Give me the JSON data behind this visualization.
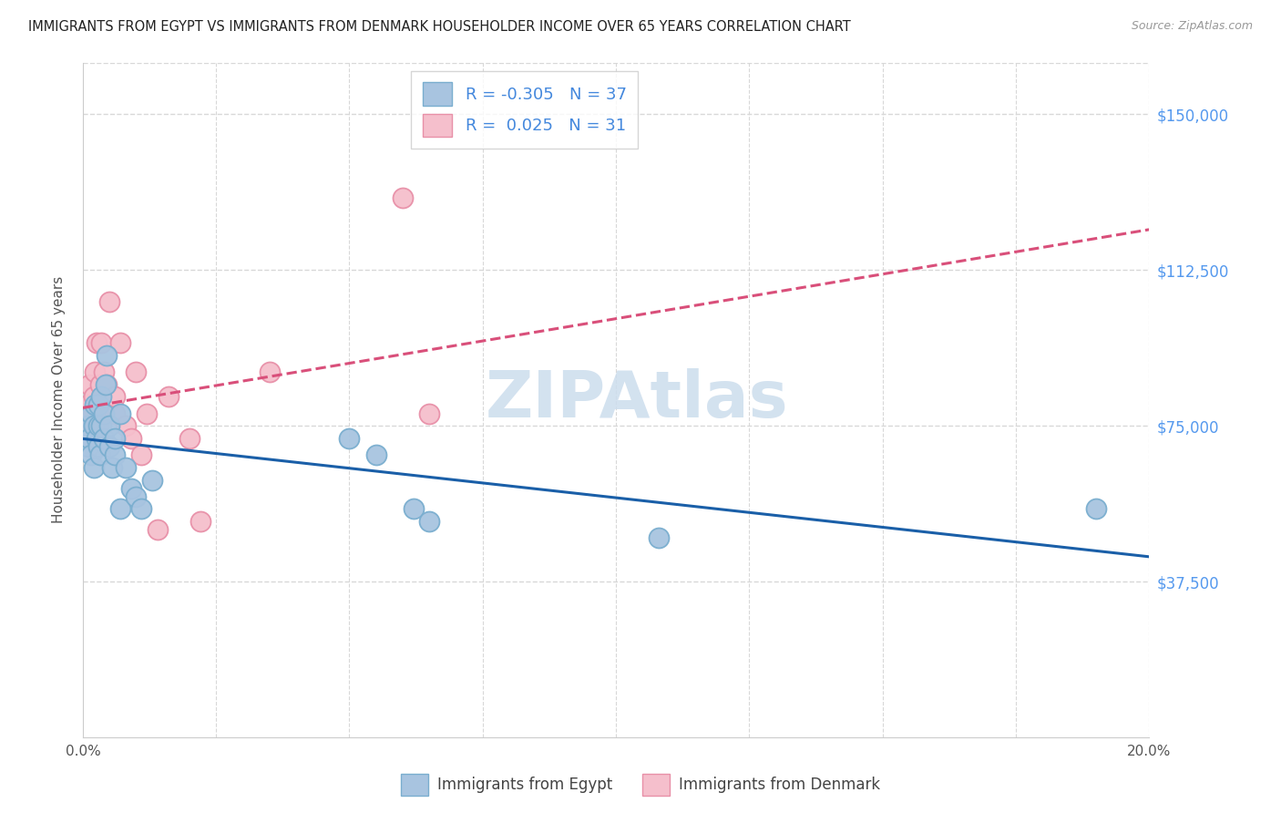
{
  "title": "IMMIGRANTS FROM EGYPT VS IMMIGRANTS FROM DENMARK HOUSEHOLDER INCOME OVER 65 YEARS CORRELATION CHART",
  "source": "Source: ZipAtlas.com",
  "ylabel": "Householder Income Over 65 years",
  "xlim": [
    0,
    0.2
  ],
  "ylim": [
    0,
    162500
  ],
  "xticks": [
    0.0,
    0.025,
    0.05,
    0.075,
    0.1,
    0.125,
    0.15,
    0.175,
    0.2
  ],
  "xticklabels": [
    "0.0%",
    "",
    "",
    "",
    "",
    "",
    "",
    "",
    "20.0%"
  ],
  "ytick_labels": [
    "$37,500",
    "$75,000",
    "$112,500",
    "$150,000"
  ],
  "ytick_values": [
    37500,
    75000,
    112500,
    150000
  ],
  "egypt_color": "#a8c4e0",
  "egypt_edge_color": "#7aaecf",
  "denmark_color": "#f5bfcc",
  "denmark_edge_color": "#e890a8",
  "egypt_line_color": "#1a5fa8",
  "denmark_line_color": "#d94f7a",
  "r_egypt": -0.305,
  "n_egypt": 37,
  "r_denmark": 0.025,
  "n_denmark": 31,
  "watermark": "ZIPAtlas",
  "watermark_color": "#ccdded",
  "egypt_x": [
    0.0008,
    0.001,
    0.0012,
    0.0015,
    0.0015,
    0.002,
    0.002,
    0.0022,
    0.0025,
    0.003,
    0.003,
    0.003,
    0.0032,
    0.0035,
    0.0035,
    0.004,
    0.004,
    0.0042,
    0.0045,
    0.005,
    0.005,
    0.0055,
    0.006,
    0.006,
    0.007,
    0.007,
    0.008,
    0.009,
    0.01,
    0.011,
    0.013,
    0.05,
    0.055,
    0.062,
    0.065,
    0.108,
    0.19
  ],
  "egypt_y": [
    75000,
    70000,
    72000,
    68000,
    78000,
    65000,
    75000,
    80000,
    72000,
    70000,
    75000,
    80000,
    68000,
    75000,
    82000,
    72000,
    78000,
    85000,
    92000,
    70000,
    75000,
    65000,
    68000,
    72000,
    78000,
    55000,
    65000,
    60000,
    58000,
    55000,
    62000,
    72000,
    68000,
    55000,
    52000,
    48000,
    55000
  ],
  "denmark_x": [
    0.0008,
    0.001,
    0.0012,
    0.0015,
    0.002,
    0.002,
    0.0022,
    0.0025,
    0.003,
    0.003,
    0.0032,
    0.0035,
    0.004,
    0.004,
    0.0045,
    0.005,
    0.006,
    0.006,
    0.007,
    0.008,
    0.009,
    0.01,
    0.011,
    0.012,
    0.014,
    0.016,
    0.02,
    0.022,
    0.035,
    0.06,
    0.065
  ],
  "denmark_y": [
    75000,
    80000,
    85000,
    72000,
    78000,
    82000,
    88000,
    95000,
    75000,
    80000,
    85000,
    95000,
    78000,
    88000,
    85000,
    105000,
    78000,
    82000,
    95000,
    75000,
    72000,
    88000,
    68000,
    78000,
    50000,
    82000,
    72000,
    52000,
    88000,
    130000,
    78000
  ],
  "background_color": "#ffffff",
  "grid_color": "#d8d8d8",
  "axis_color": "#cccccc"
}
